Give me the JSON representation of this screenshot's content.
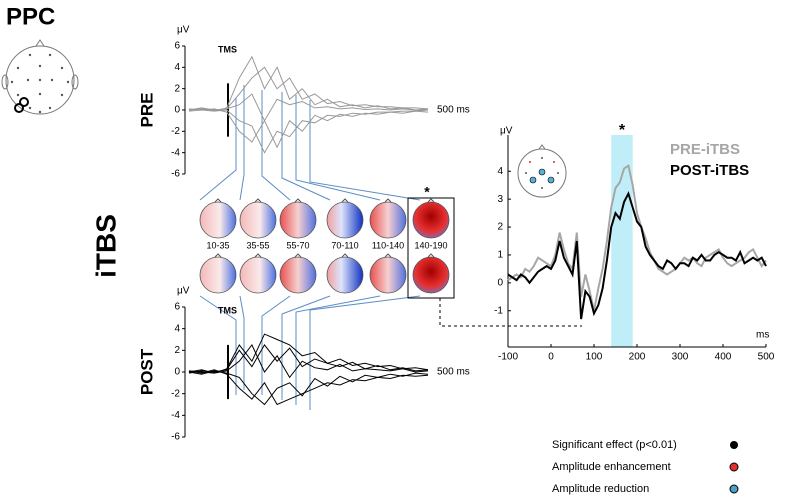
{
  "title": "PPC",
  "condition": "iTBS",
  "chart_data": [
    {
      "type": "butterfly",
      "ylabel": "PRE",
      "unit": "μV",
      "annotation": "TMS",
      "time_label": "500 ms",
      "ylim": [
        -6,
        6
      ],
      "yticks": [
        -6,
        -4,
        -2,
        0,
        2,
        4,
        6
      ],
      "color": "#999999",
      "series": [
        {
          "values": [
            0,
            0.1,
            -0.1,
            0.2,
            3,
            5,
            2,
            4,
            1,
            2,
            0.5,
            1,
            0.3,
            0.5,
            0.2,
            0.4,
            0.1,
            0.2,
            0,
            0.1
          ]
        },
        {
          "values": [
            0.1,
            0,
            0.1,
            -0.2,
            -2,
            -3,
            -1,
            -3.5,
            -1,
            -2,
            -0.5,
            -1,
            -0.4,
            -0.6,
            -0.3,
            -0.4,
            -0.2,
            -0.3,
            -0.1,
            -0.2
          ]
        },
        {
          "values": [
            0,
            0.2,
            0,
            0.1,
            1.5,
            3,
            4,
            2,
            3,
            1,
            1.5,
            0.6,
            0.8,
            0.4,
            0.5,
            0.3,
            0.3,
            0.2,
            0.2,
            0.1
          ]
        },
        {
          "values": [
            -0.1,
            0,
            -0.1,
            0,
            -1,
            -1.5,
            -4,
            -2,
            -2.5,
            -1,
            -1.2,
            -0.5,
            -0.6,
            -0.3,
            -0.4,
            -0.2,
            -0.2,
            -0.1,
            -0.1,
            0
          ]
        },
        {
          "values": [
            0,
            0.1,
            0,
            0.1,
            0.5,
            1.5,
            -1,
            1,
            0.5,
            0.8,
            0.2,
            0.3,
            0.1,
            0.2,
            0.05,
            0.1,
            0,
            0.1,
            0,
            0
          ]
        }
      ]
    },
    {
      "type": "butterfly",
      "ylabel": "POST",
      "unit": "μV",
      "annotation": "TMS",
      "time_label": "500 ms",
      "ylim": [
        -6,
        6
      ],
      "yticks": [
        -6,
        -4,
        -2,
        0,
        2,
        4,
        6
      ],
      "color": "#000000",
      "series": [
        {
          "values": [
            0,
            0.2,
            -0.1,
            0.3,
            2.5,
            1,
            3.5,
            3,
            2.5,
            1.5,
            1.8,
            0.8,
            1.2,
            0.6,
            0.8,
            0.5,
            0.6,
            0.3,
            0.4,
            0.2
          ]
        },
        {
          "values": [
            0.1,
            -0.1,
            0.2,
            -0.2,
            -1.5,
            -2.5,
            -1,
            -3,
            -2.5,
            -2,
            -1.5,
            -1,
            -1.2,
            -0.7,
            -0.8,
            -0.5,
            -0.6,
            -0.3,
            -0.4,
            -0.3
          ]
        },
        {
          "values": [
            -0.1,
            0.1,
            0,
            0.2,
            2,
            0.5,
            2.5,
            1,
            2.2,
            0.5,
            1.2,
            0.8,
            0.5,
            0.9,
            0.3,
            0.6,
            0.2,
            0.4,
            0.1,
            0.2
          ]
        },
        {
          "values": [
            0,
            -0.2,
            0.1,
            -0.1,
            -0.5,
            -2,
            -3,
            -1.5,
            -1,
            -2.2,
            -0.6,
            -1.3,
            -0.4,
            -0.9,
            -0.3,
            -0.5,
            -0.2,
            -0.4,
            -0.1,
            -0.2
          ]
        },
        {
          "values": [
            0.1,
            0,
            -0.1,
            0.1,
            1,
            2.5,
            0,
            1.5,
            -0.5,
            1,
            0.4,
            0.2,
            0.7,
            0.1,
            0.3,
            0.2,
            0.1,
            0.3,
            0,
            0.1
          ]
        }
      ]
    },
    {
      "type": "line",
      "ylabel": "μV",
      "xlabel": "ms",
      "highlight": [
        140,
        190
      ],
      "annotation": "*",
      "xlim": [
        -100,
        500
      ],
      "xticks": [
        -100,
        0,
        100,
        200,
        300,
        400,
        500
      ],
      "ylim": [
        -2.3,
        5.3
      ],
      "yticks": [
        -1,
        0,
        1,
        2,
        3,
        4
      ],
      "x": [
        -100,
        -90,
        -80,
        -70,
        -60,
        -50,
        -40,
        -30,
        -20,
        -10,
        0,
        10,
        20,
        30,
        40,
        50,
        60,
        70,
        80,
        90,
        100,
        110,
        120,
        130,
        140,
        150,
        160,
        170,
        180,
        190,
        200,
        210,
        220,
        230,
        240,
        250,
        260,
        270,
        280,
        290,
        300,
        310,
        320,
        330,
        340,
        350,
        360,
        370,
        380,
        390,
        400,
        410,
        420,
        430,
        440,
        450,
        460,
        470,
        480,
        490,
        500
      ],
      "series": [
        {
          "name": "PRE-iTBS",
          "color": "#a6a6a6",
          "values": [
            0.1,
            0.2,
            0.3,
            0.2,
            0.5,
            0.4,
            0.6,
            0.9,
            0.8,
            0.7,
            0.6,
            1.0,
            1.8,
            1.2,
            0.7,
            0.5,
            1.8,
            -0.5,
            0.3,
            -0.3,
            -1.0,
            -0.2,
            0.5,
            1.5,
            2.7,
            3.4,
            3.6,
            4.1,
            4.2,
            3.5,
            2.5,
            2.0,
            1.6,
            1.1,
            0.8,
            0.5,
            0.4,
            0.3,
            0.4,
            0.5,
            0.7,
            0.9,
            0.8,
            0.9,
            0.7,
            0.6,
            0.9,
            1.0,
            1.1,
            1.2,
            0.9,
            0.7,
            0.6,
            0.7,
            0.8,
            0.9,
            1.1,
            1.2,
            0.9,
            0.6,
            0.8
          ]
        },
        {
          "name": "POST-iTBS",
          "color": "#000000",
          "values": [
            0.3,
            0.2,
            0.1,
            0.3,
            0.2,
            0.0,
            0.2,
            0.4,
            0.5,
            0.6,
            0.5,
            0.8,
            1.5,
            0.9,
            0.6,
            0.3,
            1.5,
            -1.3,
            -0.3,
            -0.5,
            -1.1,
            -0.8,
            -0.2,
            0.8,
            2.0,
            2.5,
            2.3,
            2.9,
            3.2,
            2.7,
            2.2,
            2.0,
            1.3,
            1.0,
            0.8,
            0.6,
            0.5,
            0.8,
            0.7,
            0.5,
            0.7,
            0.7,
            0.6,
            0.9,
            0.8,
            1.0,
            0.8,
            0.8,
            1.0,
            1.1,
            1.0,
            0.9,
            0.9,
            0.8,
            1.1,
            0.7,
            0.8,
            0.9,
            0.8,
            0.9,
            0.6
          ]
        }
      ]
    }
  ],
  "topomaps": {
    "windows": [
      "10-35",
      "35-55",
      "55-70",
      "70-110",
      "110-140",
      "140-190"
    ],
    "star": "*"
  },
  "legend": [
    "Significant effect (p<0.01)",
    "Amplitude enhancement",
    "Amplitude reduction"
  ]
}
